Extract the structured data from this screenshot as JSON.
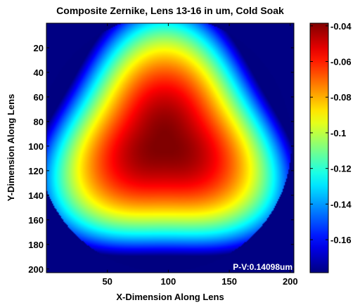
{
  "chart_data": {
    "type": "heatmap",
    "title": "Composite Zernike, Lens 13-16 in um, Cold Soak",
    "xlabel": "X-Dimension Along Lens",
    "ylabel": "Y-Dimension Along Lens",
    "xlim": [
      0,
      203
    ],
    "ylim": [
      0,
      203
    ],
    "x_ticks": [
      50,
      100,
      150,
      200
    ],
    "y_ticks": [
      20,
      40,
      60,
      80,
      100,
      120,
      140,
      160,
      180,
      200
    ],
    "y_reversed": true,
    "background_value": -0.178,
    "annotation": "P-V:0.14098um",
    "surface": {
      "peak_value": -0.038,
      "center": [
        97,
        98
      ],
      "note_shape": "rounded triangular plateau, smooth decay to edges"
    },
    "colorbar": {
      "colormap": "jet",
      "min": -0.1785,
      "max": -0.0385,
      "ticks": [
        -0.04,
        -0.06,
        -0.08,
        -0.1,
        -0.12,
        -0.14,
        -0.16
      ],
      "tick_labels": [
        "-0.04",
        "-0.06",
        "-0.08",
        "-0.1",
        "-0.12",
        "-0.14",
        "-0.16"
      ]
    },
    "colors": {
      "background": "#000080",
      "frame": "#000000",
      "annotation_text": "#ffffff"
    }
  }
}
